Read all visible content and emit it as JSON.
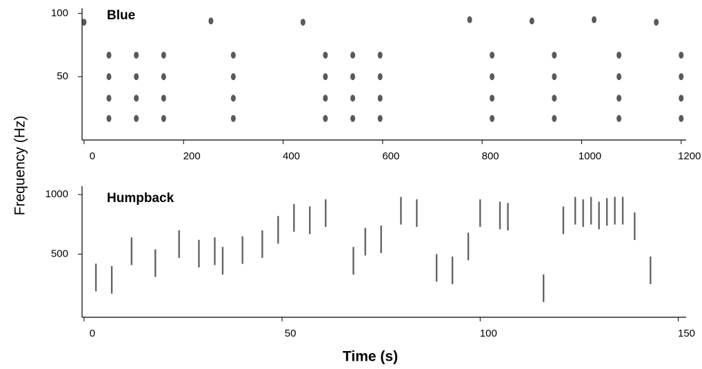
{
  "chart_data": [
    {
      "type": "scatter",
      "title": "Blue",
      "ylabel": "Frequency (Hz)",
      "color": "#222222",
      "xlim": [
        -4,
        1210
      ],
      "ylim": [
        0,
        104
      ],
      "xticks": [
        0,
        200,
        400,
        600,
        800,
        1000,
        1200
      ],
      "yticks": [
        50,
        100
      ],
      "x": [
        50,
        50,
        50,
        50,
        105,
        105,
        105,
        105,
        160,
        160,
        160,
        160,
        300,
        300,
        300,
        300,
        485,
        485,
        485,
        485,
        540,
        540,
        540,
        540,
        595,
        595,
        595,
        595,
        820,
        820,
        820,
        820,
        945,
        945,
        945,
        945,
        1075,
        1075,
        1075,
        1075,
        1200,
        1200,
        1200,
        1200,
        0,
        255,
        440,
        775,
        900,
        1025,
        1150
      ],
      "y": [
        17,
        33,
        50,
        67,
        17,
        33,
        50,
        67,
        17,
        33,
        50,
        67,
        17,
        33,
        50,
        67,
        17,
        33,
        50,
        67,
        17,
        33,
        50,
        67,
        17,
        33,
        50,
        67,
        17,
        33,
        50,
        67,
        17,
        33,
        50,
        67,
        17,
        33,
        50,
        67,
        17,
        33,
        50,
        67,
        93,
        94,
        93,
        95,
        94,
        95,
        93
      ]
    },
    {
      "type": "streak",
      "title": "Humpback",
      "xlabel": "Time (s)",
      "color": "#222222",
      "xlim": [
        -0.5,
        152
      ],
      "ylim": [
        -30,
        1070
      ],
      "xticks": [
        0,
        50,
        100,
        150
      ],
      "yticks": [
        500,
        1000
      ],
      "x": [
        3,
        7,
        12,
        18,
        24,
        29,
        33,
        35,
        40,
        45,
        49,
        53,
        57,
        61,
        68,
        71,
        75,
        80,
        84,
        89,
        93,
        97,
        100,
        105,
        107,
        116,
        121,
        124,
        126,
        128,
        130,
        132,
        134,
        136,
        139,
        143
      ],
      "y": [
        420,
        400,
        640,
        540,
        700,
        620,
        640,
        560,
        650,
        700,
        820,
        920,
        900,
        960,
        560,
        720,
        740,
        980,
        960,
        500,
        480,
        680,
        960,
        940,
        930,
        330,
        900,
        980,
        960,
        980,
        940,
        970,
        980,
        980,
        850,
        480
      ]
    }
  ]
}
